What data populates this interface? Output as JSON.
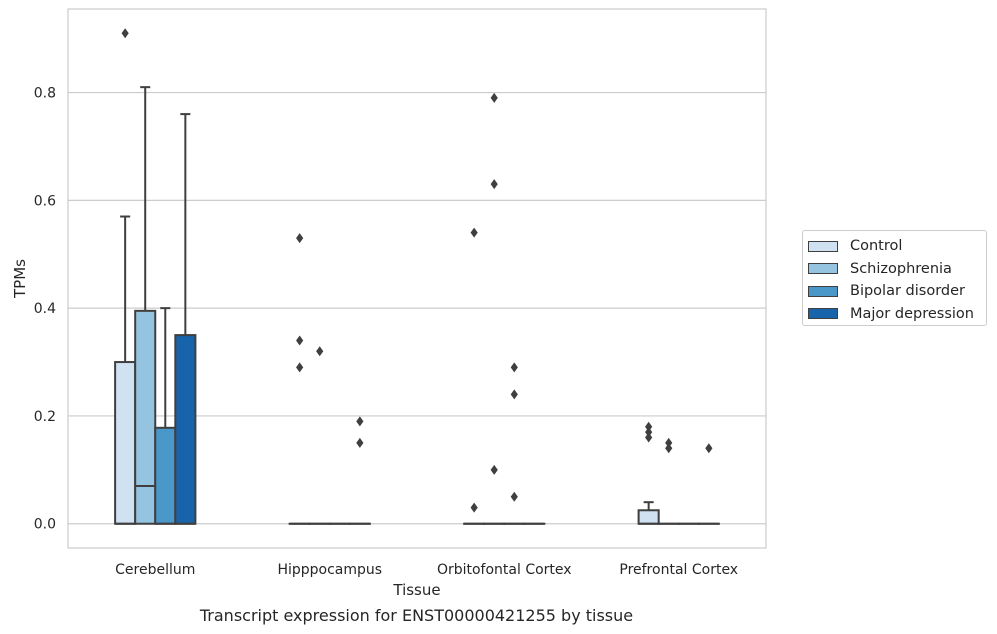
{
  "chart_data": {
    "type": "box",
    "caption": "Transcript expression for ENST00000421255 by tissue",
    "xlabel": "Tissue",
    "ylabel": "TPMs",
    "ylim": [
      -0.045,
      0.955
    ],
    "yticks": [
      "0.0",
      "0.2",
      "0.4",
      "0.6",
      "0.8"
    ],
    "ytick_values": [
      0.0,
      0.2,
      0.4,
      0.6,
      0.8
    ],
    "grid": true,
    "legend_position": "outside-right",
    "categories": [
      "Cerebellum",
      "Hipppocampus",
      "Orbitofontal Cortex",
      "Prefrontal Cortex"
    ],
    "series": [
      {
        "name": "Control",
        "color": "#d0e1f2",
        "boxes": [
          {
            "q1": 0.0,
            "median": 0.0,
            "q3": 0.3,
            "whisker_low": 0.0,
            "whisker_high": 0.57,
            "outliers": [
              0.91
            ]
          },
          {
            "q1": 0.0,
            "median": 0.0,
            "q3": 0.0,
            "whisker_low": 0.0,
            "whisker_high": 0.0,
            "outliers": [
              0.53,
              0.34,
              0.29
            ]
          },
          {
            "q1": 0.0,
            "median": 0.0,
            "q3": 0.0,
            "whisker_low": 0.0,
            "whisker_high": 0.0,
            "outliers": [
              0.54,
              0.03
            ]
          },
          {
            "q1": 0.0,
            "median": 0.0,
            "q3": 0.025,
            "whisker_low": 0.0,
            "whisker_high": 0.04,
            "outliers": [
              0.18,
              0.17,
              0.16
            ]
          }
        ]
      },
      {
        "name": "Schizophrenia",
        "color": "#94c4df",
        "boxes": [
          {
            "q1": 0.0,
            "median": 0.07,
            "q3": 0.395,
            "whisker_low": 0.0,
            "whisker_high": 0.81,
            "outliers": []
          },
          {
            "q1": 0.0,
            "median": 0.0,
            "q3": 0.0,
            "whisker_low": 0.0,
            "whisker_high": 0.0,
            "outliers": [
              0.32
            ]
          },
          {
            "q1": 0.0,
            "median": 0.0,
            "q3": 0.0,
            "whisker_low": 0.0,
            "whisker_high": 0.0,
            "outliers": [
              0.79,
              0.63,
              0.1
            ]
          },
          {
            "q1": 0.0,
            "median": 0.0,
            "q3": 0.0,
            "whisker_low": 0.0,
            "whisker_high": 0.0,
            "outliers": [
              0.15,
              0.14
            ]
          }
        ]
      },
      {
        "name": "Bipolar disorder",
        "color": "#4a98c9",
        "boxes": [
          {
            "q1": 0.0,
            "median": 0.0,
            "q3": 0.178,
            "whisker_low": 0.0,
            "whisker_high": 0.4,
            "outliers": []
          },
          {
            "q1": 0.0,
            "median": 0.0,
            "q3": 0.0,
            "whisker_low": 0.0,
            "whisker_high": 0.0,
            "outliers": []
          },
          {
            "q1": 0.0,
            "median": 0.0,
            "q3": 0.0,
            "whisker_low": 0.0,
            "whisker_high": 0.0,
            "outliers": [
              0.29,
              0.24,
              0.05
            ]
          },
          {
            "q1": 0.0,
            "median": 0.0,
            "q3": 0.0,
            "whisker_low": 0.0,
            "whisker_high": 0.0,
            "outliers": []
          }
        ]
      },
      {
        "name": "Major depression",
        "color": "#1764ab",
        "boxes": [
          {
            "q1": 0.0,
            "median": 0.0,
            "q3": 0.35,
            "whisker_low": 0.0,
            "whisker_high": 0.76,
            "outliers": []
          },
          {
            "q1": 0.0,
            "median": 0.0,
            "q3": 0.0,
            "whisker_low": 0.0,
            "whisker_high": 0.0,
            "outliers": [
              0.19,
              0.15
            ]
          },
          {
            "q1": 0.0,
            "median": 0.0,
            "q3": 0.0,
            "whisker_low": 0.0,
            "whisker_high": 0.0,
            "outliers": []
          },
          {
            "q1": 0.0,
            "median": 0.0,
            "q3": 0.0,
            "whisker_low": 0.0,
            "whisker_high": 0.0,
            "outliers": [
              0.14
            ]
          }
        ]
      }
    ]
  }
}
